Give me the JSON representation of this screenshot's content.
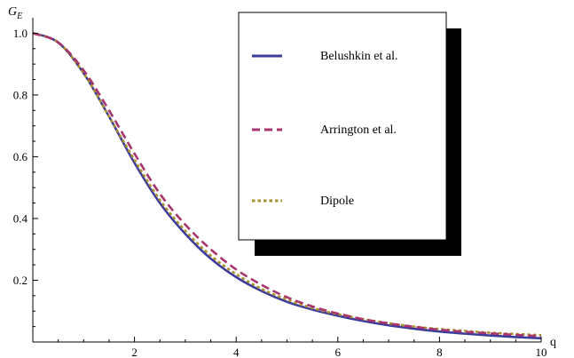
{
  "chart_data": {
    "type": "line",
    "ylabel_main": "G",
    "ylabel_sub": "E",
    "xlabel": "q",
    "xlim": [
      0,
      10
    ],
    "ylim": [
      0,
      1.05
    ],
    "x_ticks": [
      2,
      4,
      6,
      8,
      10
    ],
    "y_ticks": [
      0.2,
      0.4,
      0.6,
      0.8,
      1.0
    ],
    "y_tick_labels": [
      "0.2",
      "0.4",
      "0.6",
      "0.8",
      "1.0"
    ],
    "legend_position": "upper-right",
    "series": [
      {
        "name": "Belushkin et al.",
        "color": "#3c3c9c",
        "dash": "solid",
        "x": [
          0,
          0.5,
          1,
          1.5,
          2,
          2.5,
          3,
          3.5,
          4,
          4.5,
          5,
          5.5,
          6,
          6.5,
          7,
          7.5,
          8,
          8.5,
          9,
          9.5,
          10
        ],
        "y": [
          1.0,
          0.97,
          0.87,
          0.73,
          0.58,
          0.45,
          0.35,
          0.27,
          0.21,
          0.165,
          0.13,
          0.105,
          0.085,
          0.068,
          0.054,
          0.043,
          0.034,
          0.027,
          0.021,
          0.016,
          0.012
        ]
      },
      {
        "name": "Arrington et al.",
        "color": "#a8356e",
        "dash": "dashed",
        "x": [
          0,
          0.5,
          1,
          1.5,
          2,
          2.5,
          3,
          3.5,
          4,
          4.5,
          5,
          5.5,
          6,
          6.5,
          7,
          7.5,
          8,
          8.5,
          9,
          9.5,
          10
        ],
        "y": [
          1.0,
          0.97,
          0.88,
          0.75,
          0.61,
          0.48,
          0.38,
          0.3,
          0.235,
          0.185,
          0.145,
          0.115,
          0.092,
          0.074,
          0.06,
          0.049,
          0.04,
          0.033,
          0.028,
          0.023,
          0.019
        ]
      },
      {
        "name": "Dipole",
        "color": "#a8922c",
        "dash": "dotted",
        "x": [
          0,
          0.5,
          1,
          1.5,
          2,
          2.5,
          3,
          3.5,
          4,
          4.5,
          5,
          5.5,
          6,
          6.5,
          7,
          7.5,
          8,
          8.5,
          9,
          9.5,
          10
        ],
        "y": [
          1.0,
          0.97,
          0.87,
          0.73,
          0.59,
          0.46,
          0.36,
          0.28,
          0.22,
          0.172,
          0.137,
          0.11,
          0.09,
          0.074,
          0.061,
          0.05,
          0.042,
          0.036,
          0.03,
          0.026,
          0.022
        ]
      }
    ]
  }
}
